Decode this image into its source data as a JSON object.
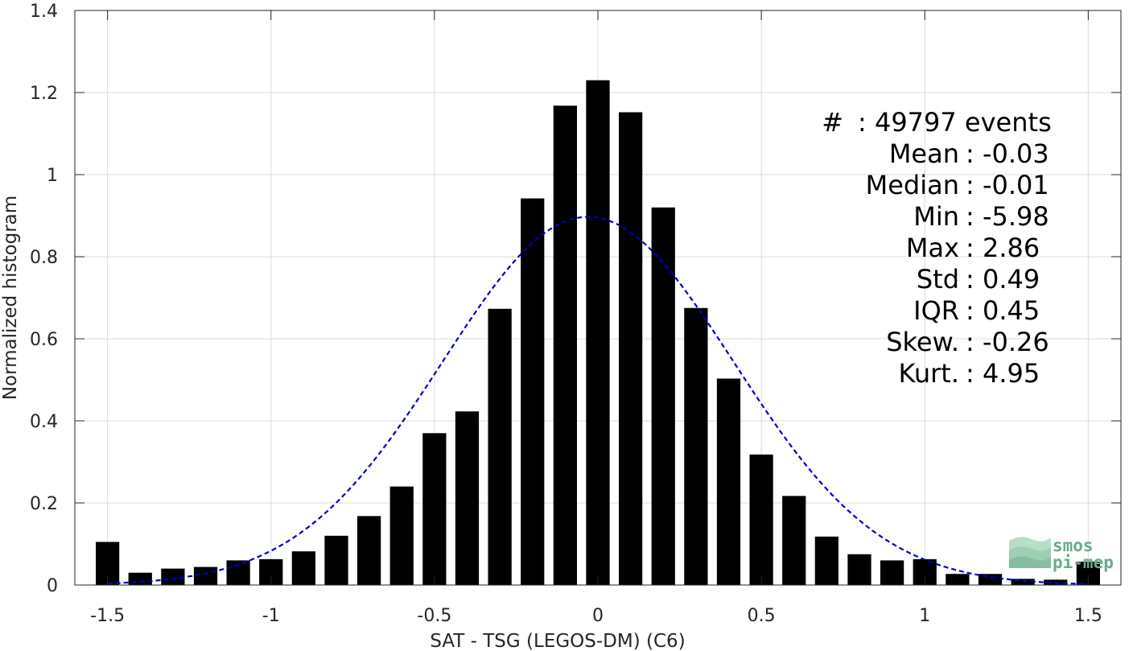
{
  "chart_data": {
    "type": "bar",
    "xlabel": "SAT - TSG (LEGOS-DM) (C6)",
    "ylabel": "Normalized histogram",
    "xlim": [
      -1.6,
      1.6
    ],
    "ylim": [
      0,
      1.4
    ],
    "xticks": [
      -1.5,
      -1,
      -0.5,
      0,
      0.5,
      1,
      1.5
    ],
    "xtick_labels": [
      "-1.5",
      "-1",
      "-0.5",
      "0",
      "0.5",
      "1",
      "1.5"
    ],
    "yticks": [
      0,
      0.2,
      0.4,
      0.6,
      0.8,
      1,
      1.2,
      1.4
    ],
    "ytick_labels": [
      "0",
      "0.2",
      "0.4",
      "0.6",
      "0.8",
      "1",
      "1.2",
      "1.4"
    ],
    "grid": true,
    "bar_color": "#000000",
    "bins": {
      "x": [
        -1.5,
        -1.4,
        -1.3,
        -1.2,
        -1.1,
        -1.0,
        -0.9,
        -0.8,
        -0.7,
        -0.6,
        -0.5,
        -0.4,
        -0.3,
        -0.2,
        -0.1,
        0.0,
        0.1,
        0.2,
        0.3,
        0.4,
        0.5,
        0.6,
        0.7,
        0.8,
        0.9,
        1.0,
        1.1,
        1.2,
        1.3,
        1.4,
        1.5
      ],
      "values": [
        0.105,
        0.03,
        0.04,
        0.044,
        0.06,
        0.063,
        0.082,
        0.12,
        0.168,
        0.24,
        0.37,
        0.423,
        0.673,
        0.942,
        1.168,
        1.23,
        1.152,
        0.92,
        0.675,
        0.503,
        0.318,
        0.217,
        0.118,
        0.075,
        0.06,
        0.063,
        0.027,
        0.027,
        0.015,
        0.013,
        0.057
      ]
    },
    "fit_curve": {
      "style": "dashed",
      "color": "#0000cc",
      "mean": -0.03,
      "std": 0.445,
      "peak": 0.897
    },
    "annotations": [
      {
        "label": "#",
        "value": ": 49797 events"
      },
      {
        "label": "Mean",
        "value": ": -0.03"
      },
      {
        "label": "Median",
        "value": ": -0.01"
      },
      {
        "label": "Min",
        "value": ": -5.98"
      },
      {
        "label": "Max",
        "value": ": 2.86"
      },
      {
        "label": "Std",
        "value": ": 0.49"
      },
      {
        "label": "IQR",
        "value": ": 0.45"
      },
      {
        "label": "Skew.",
        "value": ": -0.26"
      },
      {
        "label": "Kurt.",
        "value": ": 4.95"
      }
    ]
  },
  "logo": {
    "line1": "smos",
    "line2": "pi-mep",
    "color": "#6aaa8c"
  }
}
